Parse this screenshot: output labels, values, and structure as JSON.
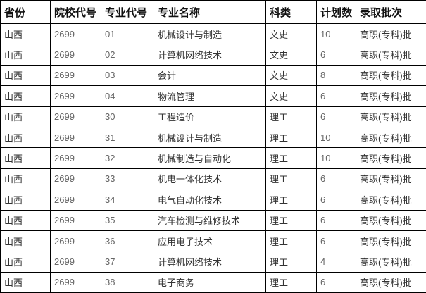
{
  "table": {
    "headers": [
      "省份",
      "院校代号",
      "专业代号",
      "专业名称",
      "科类",
      "计划数",
      "录取批次"
    ],
    "column_keys": [
      "province",
      "school-code",
      "major-code",
      "major-name",
      "subject-category",
      "plan-count",
      "admission-batch"
    ],
    "numeric_column_indexes": [
      1,
      2,
      5
    ],
    "rows": [
      [
        "山西",
        "2699",
        "01",
        "机械设计与制造",
        "文史",
        "10",
        "高职(专科)批"
      ],
      [
        "山西",
        "2699",
        "02",
        "计算机网络技术",
        "文史",
        "6",
        "高职(专科)批"
      ],
      [
        "山西",
        "2699",
        "03",
        "会计",
        "文史",
        "8",
        "高职(专科)批"
      ],
      [
        "山西",
        "2699",
        "04",
        "物流管理",
        "文史",
        "6",
        "高职(专科)批"
      ],
      [
        "山西",
        "2699",
        "30",
        "工程造价",
        "理工",
        "6",
        "高职(专科)批"
      ],
      [
        "山西",
        "2699",
        "31",
        "机械设计与制造",
        "理工",
        "10",
        "高职(专科)批"
      ],
      [
        "山西",
        "2699",
        "32",
        "机械制造与自动化",
        "理工",
        "10",
        "高职(专科)批"
      ],
      [
        "山西",
        "2699",
        "33",
        "机电一体化技术",
        "理工",
        "6",
        "高职(专科)批"
      ],
      [
        "山西",
        "2699",
        "34",
        "电气自动化技术",
        "理工",
        "6",
        "高职(专科)批"
      ],
      [
        "山西",
        "2699",
        "35",
        "汽车检测与维修技术",
        "理工",
        "6",
        "高职(专科)批"
      ],
      [
        "山西",
        "2699",
        "36",
        "应用电子技术",
        "理工",
        "6",
        "高职(专科)批"
      ],
      [
        "山西",
        "2699",
        "37",
        "计算机网络技术",
        "理工",
        "4",
        "高职(专科)批"
      ],
      [
        "山西",
        "2699",
        "38",
        "电子商务",
        "理工",
        "6",
        "高职(专科)批"
      ]
    ],
    "colors": {
      "border": "#000000",
      "text": "#333333",
      "numeric_text": "#666666",
      "background": "#ffffff"
    }
  }
}
